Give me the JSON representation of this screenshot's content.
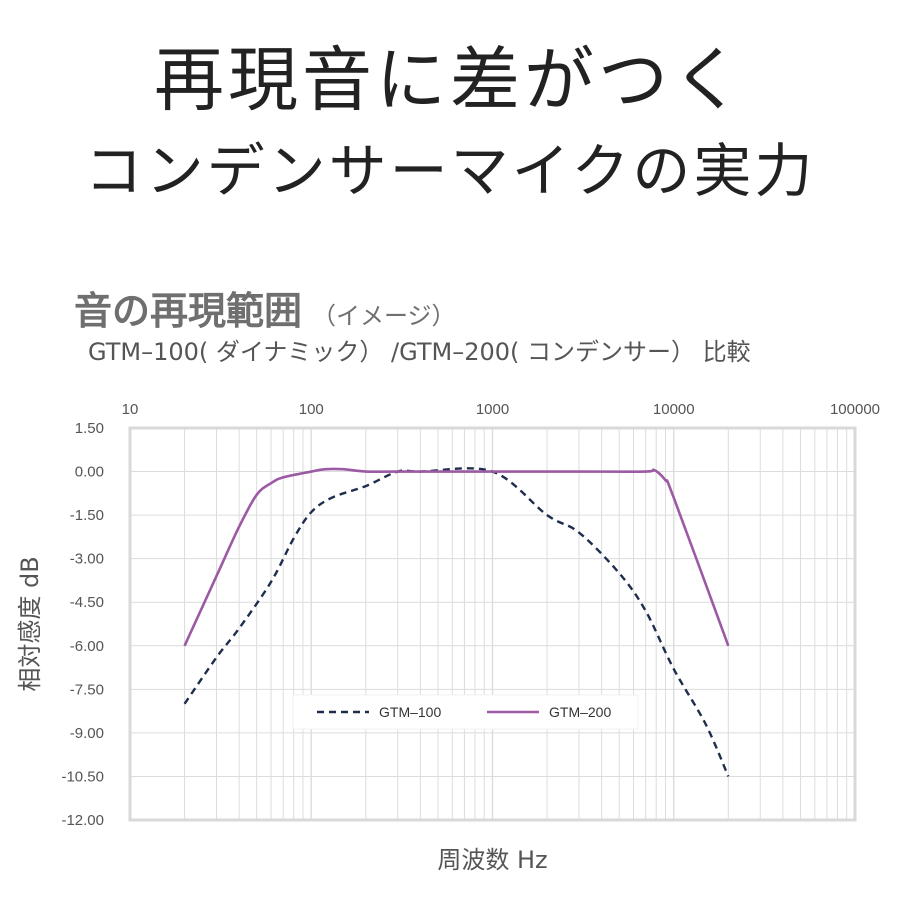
{
  "header": {
    "line1": "再現音に差がつく",
    "line2": "コンデンサーマイクの実力"
  },
  "subtitle": {
    "main": "音の再現範囲",
    "note": "（イメージ）",
    "comparison": "GTM–100( ダイナミック） /GTM–200( コンデンサー） 比較"
  },
  "colors": {
    "gtm100": "#1f2d4d",
    "gtm200": "#9b5aa3",
    "grid": "#dcdcdc",
    "frame": "#d9d9d9"
  },
  "chart_data": {
    "type": "line",
    "xscale": "log",
    "xlim": [
      10,
      100000
    ],
    "ylim": [
      -12,
      1.5
    ],
    "x_ticks": [
      10,
      100,
      1000,
      10000,
      100000
    ],
    "x_tick_labels": [
      "10",
      "100",
      "1000",
      "10000",
      "100000"
    ],
    "y_ticks": [
      1.5,
      0,
      -1.5,
      -3,
      -4.5,
      -6,
      -7.5,
      -9,
      -10.5,
      -12
    ],
    "y_tick_labels": [
      "1.50",
      "0.00",
      "-1.50",
      "-3.00",
      "-4.50",
      "-6.00",
      "-7.50",
      "-9.00",
      "-10.50",
      "-12.00"
    ],
    "xlabel": "周波数 Hz",
    "ylabel": "相対感度 dB",
    "grid": true,
    "legend_position": "bottom-center",
    "series": [
      {
        "name": "GTM–100",
        "style": "dashed",
        "x": [
          20,
          30,
          40,
          60,
          80,
          100,
          130,
          200,
          300,
          400,
          1000,
          2000,
          3000,
          5000,
          7000,
          10000,
          15000,
          20000
        ],
        "y": [
          -8.0,
          -6.4,
          -5.4,
          -3.8,
          -2.3,
          -1.4,
          -0.9,
          -0.5,
          0.0,
          0.0,
          0.0,
          -1.5,
          -2.1,
          -3.5,
          -4.8,
          -6.8,
          -8.7,
          -10.5
        ]
      },
      {
        "name": "GTM–200",
        "style": "solid",
        "x": [
          20,
          30,
          40,
          50,
          60,
          70,
          100,
          120,
          150,
          200,
          300,
          1000,
          3000,
          7000,
          7800,
          9000,
          10000,
          20000
        ],
        "y": [
          -6.0,
          -3.6,
          -1.9,
          -0.8,
          -0.4,
          -0.2,
          0.0,
          0.08,
          0.08,
          0.0,
          0.0,
          0.0,
          0.0,
          0.0,
          0.05,
          -0.3,
          -0.9,
          -6.0
        ]
      }
    ]
  }
}
